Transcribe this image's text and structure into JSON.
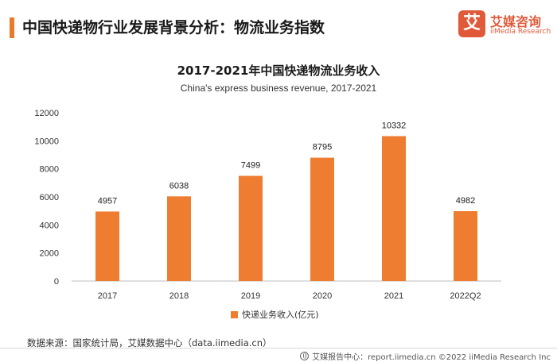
{
  "header": {
    "title": "中国快递物行业发展背景分析：物流业务指数"
  },
  "logo": {
    "mark": "艾",
    "name": "艾媒咨询",
    "sub": "iiMedia Research"
  },
  "chart_data": {
    "type": "bar",
    "title": "2017-2021年中国快递物流业务收入",
    "subtitle": "China's express business revenue, 2017-2021",
    "categories": [
      "2017",
      "2018",
      "2019",
      "2020",
      "2021",
      "2022Q2"
    ],
    "series": [
      {
        "name": "快递业务收入(亿元)",
        "values": [
          4957,
          6038,
          7499,
          8795,
          10332,
          4982
        ]
      }
    ],
    "data_labels": [
      "4957",
      "6038",
      "7499",
      "8795",
      "10332",
      "4982"
    ],
    "yticks": [
      "0",
      "2000",
      "4000",
      "6000",
      "8000",
      "10000",
      "12000"
    ],
    "ylim": [
      0,
      12000
    ],
    "grid": false,
    "legend_position": "bottom",
    "color": "#ee7d31"
  },
  "footer": {
    "source": "数据来源：国家统计局，艾媒数据中心（data.iimedia.cn）",
    "credit": "艾媒报告中心：report.iimedia.cn  ©2022  iiMedia Research  Inc"
  }
}
